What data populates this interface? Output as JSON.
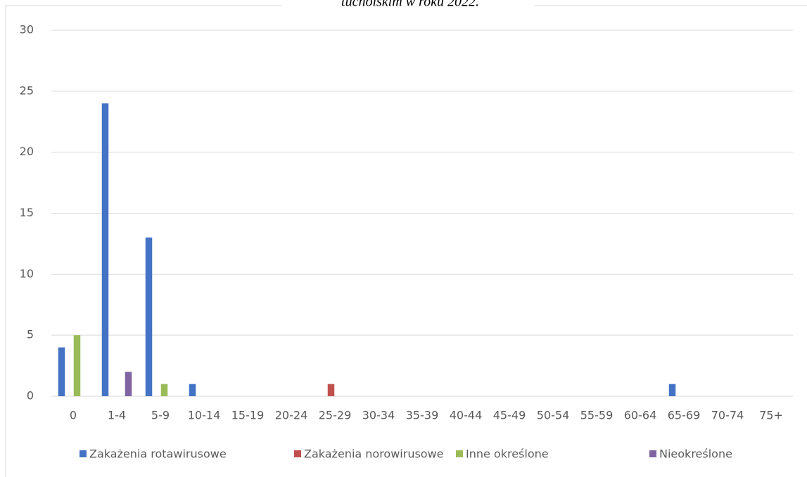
{
  "chart_data": {
    "type": "bar",
    "title": "tucholskim w roku 2022.",
    "categories": [
      "0",
      "1-4",
      "5-9",
      "10-14",
      "15-19",
      "20-24",
      "25-29",
      "30-34",
      "35-39",
      "40-44",
      "45-49",
      "50-54",
      "55-59",
      "60-64",
      "65-69",
      "70-74",
      "75+"
    ],
    "series": [
      {
        "name": "Zakażenia rotawirusowe",
        "color": "#4472c4",
        "values": [
          4,
          24,
          13,
          1,
          0,
          0,
          0,
          0,
          0,
          0,
          0,
          0,
          0,
          0,
          1,
          0,
          0
        ]
      },
      {
        "name": "Zakażenia norowirusowe",
        "color": "#c0504d",
        "values": [
          0,
          0,
          0,
          0,
          0,
          0,
          1,
          0,
          0,
          0,
          0,
          0,
          0,
          0,
          0,
          0,
          0
        ]
      },
      {
        "name": "Inne określone",
        "color": "#9bbb59",
        "values": [
          5,
          0,
          1,
          0,
          0,
          0,
          0,
          0,
          0,
          0,
          0,
          0,
          0,
          0,
          0,
          0,
          0
        ]
      },
      {
        "name": "Nieokreślone",
        "color": "#8064a2",
        "values": [
          0,
          2,
          0,
          0,
          0,
          0,
          0,
          0,
          0,
          0,
          0,
          0,
          0,
          0,
          0,
          0,
          0
        ]
      }
    ],
    "ylim": [
      0,
      30
    ],
    "yticks": [
      0,
      5,
      10,
      15,
      20,
      25,
      30
    ],
    "grid": true,
    "legend": "bottom"
  }
}
